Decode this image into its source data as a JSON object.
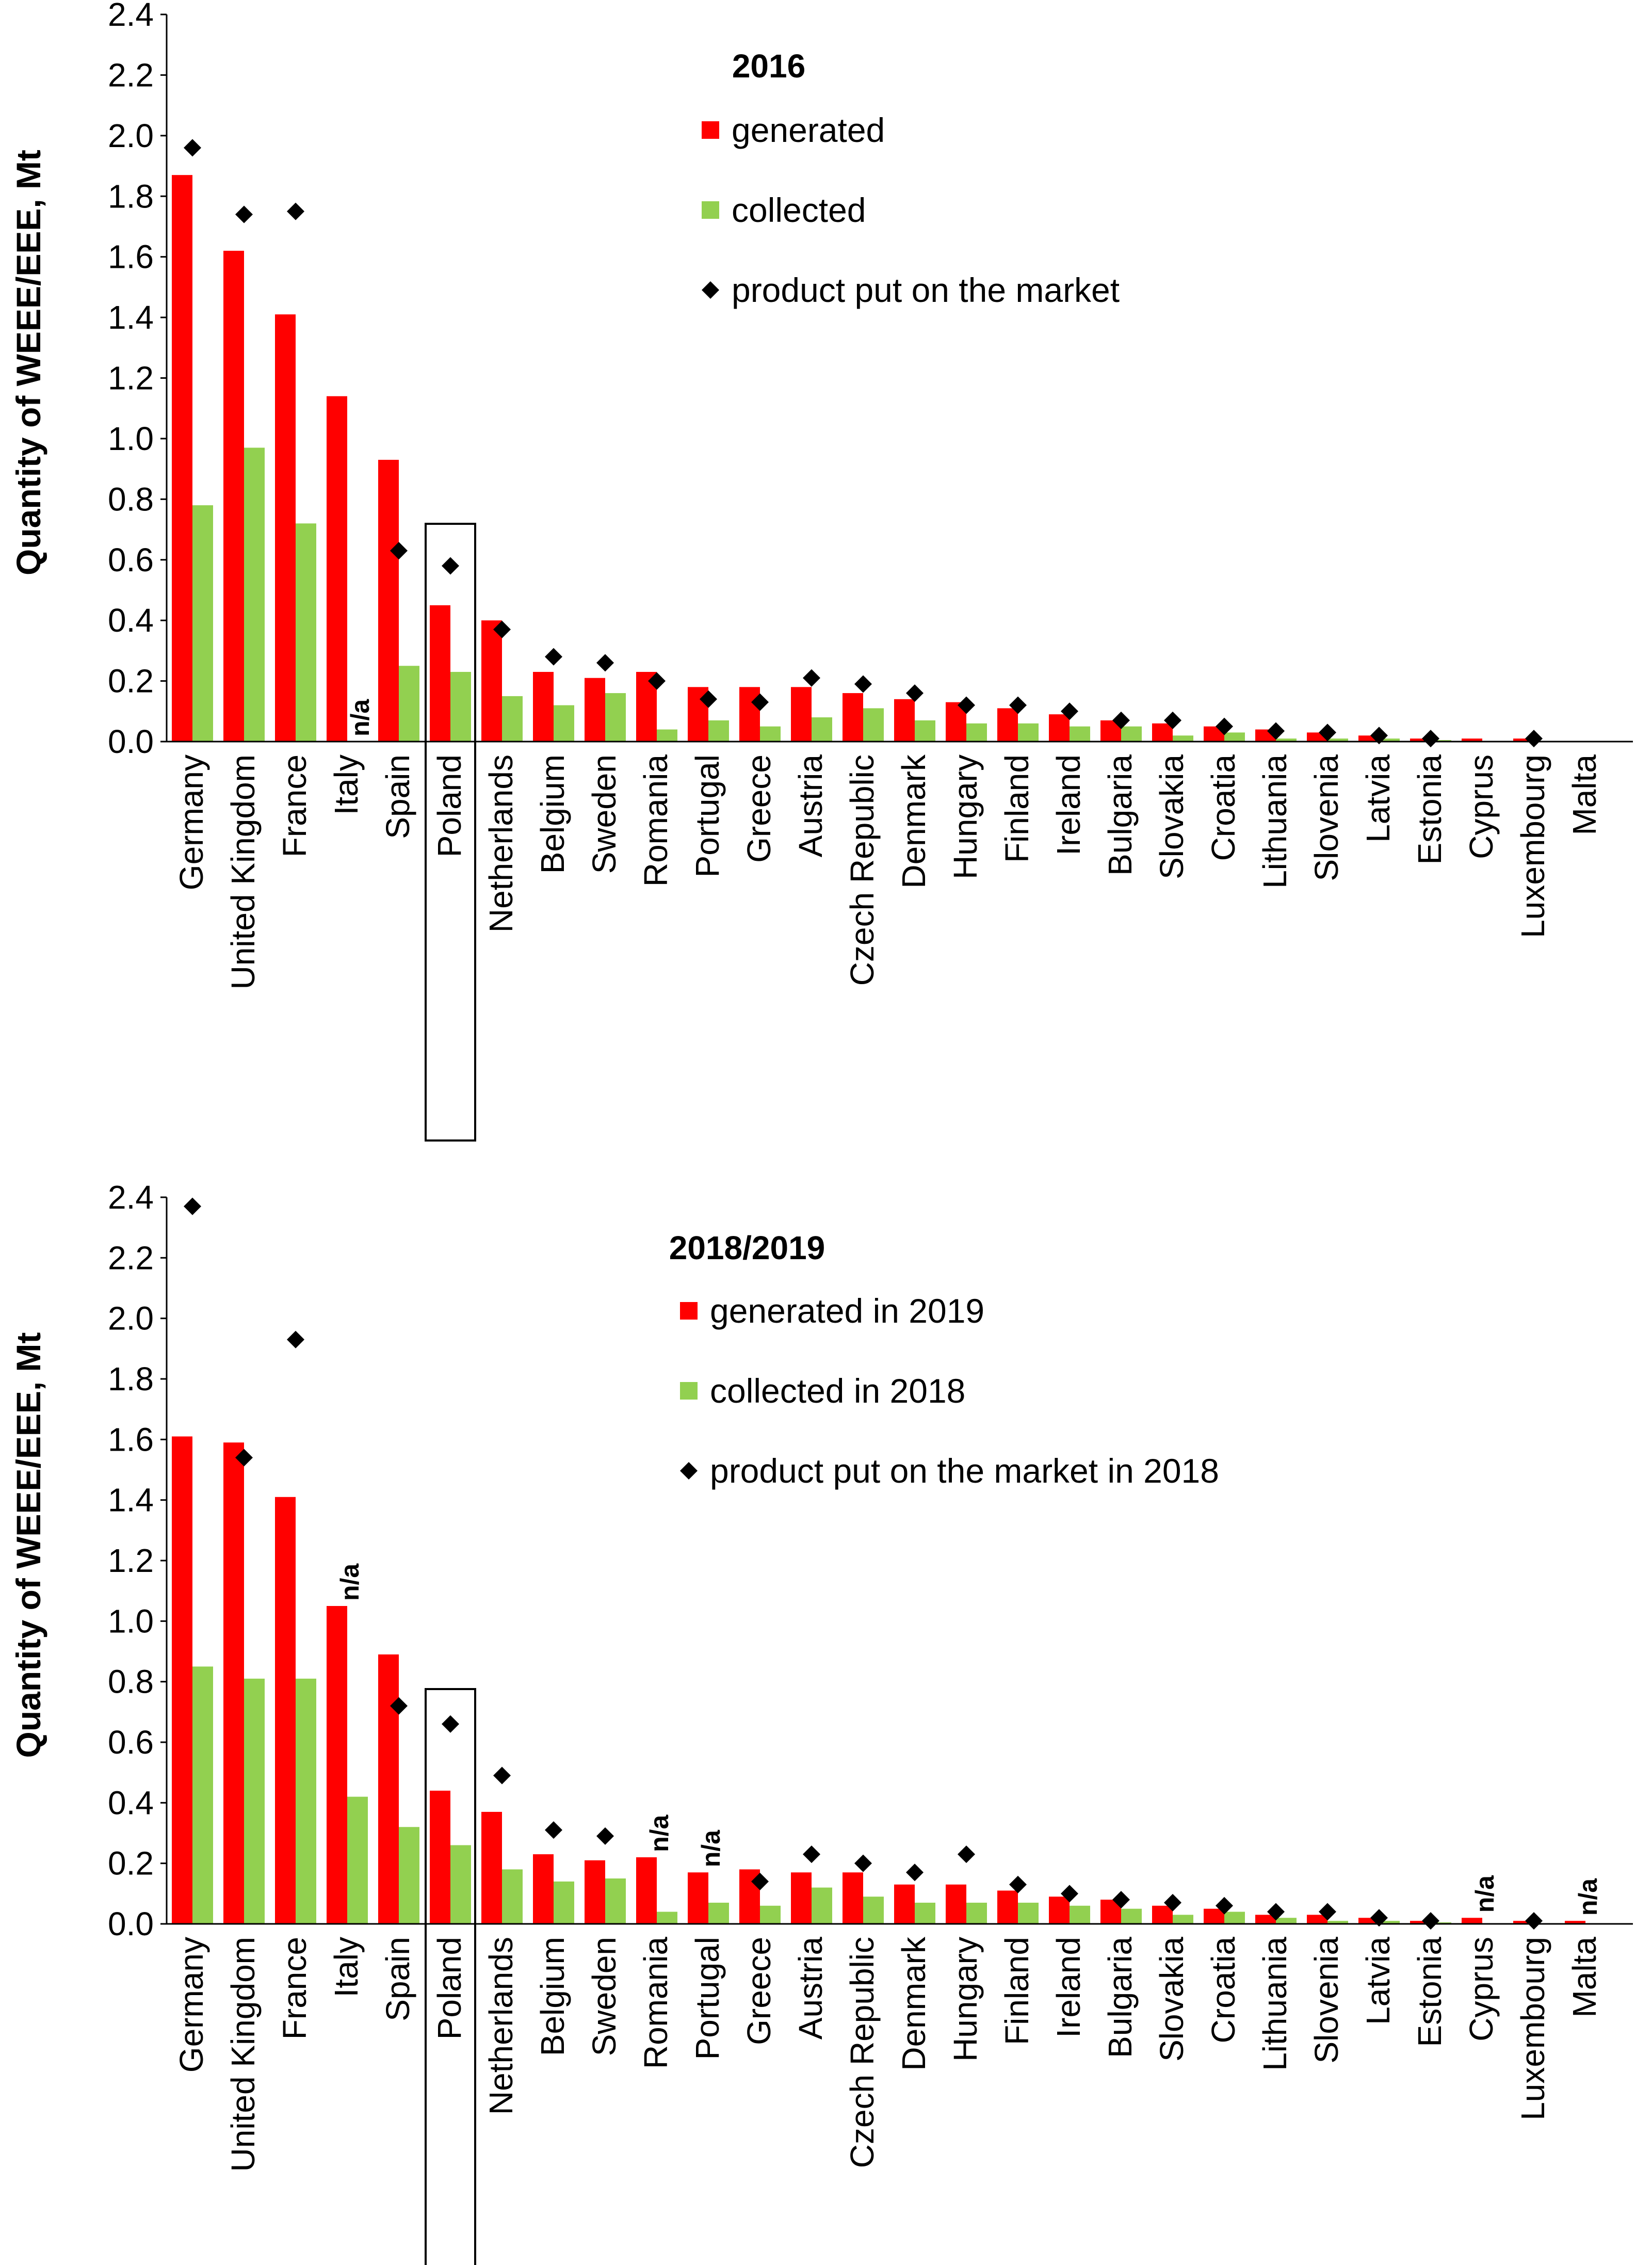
{
  "chart_data": [
    {
      "type": "bar",
      "title": "2016",
      "xlabel": "",
      "ylabel": "Quantity of WEEE/EEE, Mt",
      "ylim": [
        0,
        2.4
      ],
      "yticks": [
        "0.0",
        "0.2",
        "0.4",
        "0.6",
        "0.8",
        "1.0",
        "1.2",
        "1.4",
        "1.6",
        "1.8",
        "2.0",
        "2.2",
        "2.4"
      ],
      "categories": [
        "Germany",
        "United Kingdom",
        "France",
        "Italy",
        "Spain",
        "Poland",
        "Netherlands",
        "Belgium",
        "Sweden",
        "Romania",
        "Portugal",
        "Greece",
        "Austria",
        "Czech Republic",
        "Denmark",
        "Hungary",
        "Finland",
        "Ireland",
        "Bulgaria",
        "Slovakia",
        "Croatia",
        "Lithuania",
        "Slovenia",
        "Latvia",
        "Estonia",
        "Cyprus",
        "Luxembourg",
        "Malta"
      ],
      "highlighted_category": "Poland",
      "legend_position": "top-right",
      "series": [
        {
          "name": "generated",
          "kind": "bar",
          "color": "#ff0000",
          "values": [
            1.87,
            1.62,
            1.41,
            1.14,
            0.93,
            0.45,
            0.4,
            0.23,
            0.21,
            0.23,
            0.18,
            0.18,
            0.18,
            0.16,
            0.14,
            0.13,
            0.11,
            0.09,
            0.07,
            0.06,
            0.05,
            0.04,
            0.03,
            0.02,
            0.01,
            0.01,
            0.01,
            0
          ]
        },
        {
          "name": "collected",
          "kind": "bar",
          "color": "#92d050",
          "values": [
            0.78,
            0.97,
            0.72,
            null,
            0.25,
            0.23,
            0.15,
            0.12,
            0.16,
            0.04,
            0.07,
            0.05,
            0.08,
            0.11,
            0.07,
            0.06,
            0.06,
            0.05,
            0.05,
            0.02,
            0.03,
            0.01,
            0.01,
            0.01,
            0.005,
            0,
            0,
            0
          ]
        },
        {
          "name": "product put on the market",
          "kind": "marker",
          "color": "#000000",
          "values": [
            1.96,
            1.74,
            1.75,
            null,
            0.63,
            0.58,
            0.37,
            0.28,
            0.26,
            0.2,
            0.14,
            0.13,
            0.21,
            0.19,
            0.16,
            0.12,
            0.12,
            0.1,
            0.07,
            0.07,
            0.05,
            0.035,
            0.03,
            0.02,
            0.01,
            null,
            0.01,
            null
          ]
        }
      ],
      "annotations": [
        {
          "category": "Italy",
          "series": "collected",
          "text": "n/a"
        }
      ]
    },
    {
      "type": "bar",
      "title": "2018/2019",
      "xlabel": "",
      "ylabel": "Quantity of WEEE/EEE, Mt",
      "ylim": [
        0,
        2.4
      ],
      "yticks": [
        "0.0",
        "0.2",
        "0.4",
        "0.6",
        "0.8",
        "1.0",
        "1.2",
        "1.4",
        "1.6",
        "1.8",
        "2.0",
        "2.2",
        "2.4"
      ],
      "categories": [
        "Germany",
        "United Kingdom",
        "France",
        "Italy",
        "Spain",
        "Poland",
        "Netherlands",
        "Belgium",
        "Sweden",
        "Romania",
        "Portugal",
        "Greece",
        "Austria",
        "Czech Republic",
        "Denmark",
        "Hungary",
        "Finland",
        "Ireland",
        "Bulgaria",
        "Slovakia",
        "Croatia",
        "Lithuania",
        "Slovenia",
        "Latvia",
        "Estonia",
        "Cyprus",
        "Luxembourg",
        "Malta"
      ],
      "highlighted_category": "Poland",
      "legend_position": "top-right",
      "series": [
        {
          "name": "generated in 2019",
          "kind": "bar",
          "color": "#ff0000",
          "values": [
            1.61,
            1.59,
            1.41,
            1.05,
            0.89,
            0.44,
            0.37,
            0.23,
            0.21,
            0.22,
            0.17,
            0.18,
            0.17,
            0.17,
            0.13,
            0.13,
            0.11,
            0.09,
            0.08,
            0.06,
            0.05,
            0.03,
            0.03,
            0.02,
            0.01,
            0.02,
            0.01,
            0.01
          ]
        },
        {
          "name": "collected in 2018",
          "kind": "bar",
          "color": "#92d050",
          "values": [
            0.85,
            0.81,
            0.81,
            0.42,
            0.32,
            0.26,
            0.18,
            0.14,
            0.15,
            0.04,
            0.07,
            0.06,
            0.12,
            0.09,
            0.07,
            0.07,
            0.07,
            0.06,
            0.05,
            0.03,
            0.04,
            0.02,
            0.01,
            0.01,
            0.005,
            0,
            0,
            0
          ]
        },
        {
          "name": "product put on the market in 2018",
          "kind": "marker",
          "color": "#000000",
          "values": [
            2.37,
            1.54,
            1.93,
            null,
            0.72,
            0.66,
            0.49,
            0.31,
            0.29,
            null,
            null,
            0.14,
            0.23,
            0.2,
            0.17,
            0.23,
            0.13,
            0.1,
            0.08,
            0.07,
            0.06,
            0.04,
            0.04,
            0.02,
            0.01,
            null,
            0.01,
            null
          ]
        }
      ],
      "annotations": [
        {
          "category": "Italy",
          "series": "product put on the market in 2018",
          "text": "n/a"
        },
        {
          "category": "Romania",
          "series": "product put on the market in 2018",
          "text": "n/a"
        },
        {
          "category": "Portugal",
          "series": "product put on the market in 2018",
          "text": "n/a"
        },
        {
          "category": "Cyprus",
          "series": "product put on the market in 2018",
          "text": "n/a"
        },
        {
          "category": "Malta",
          "series": "product put on the market in 2018",
          "text": "n/a"
        }
      ]
    }
  ]
}
